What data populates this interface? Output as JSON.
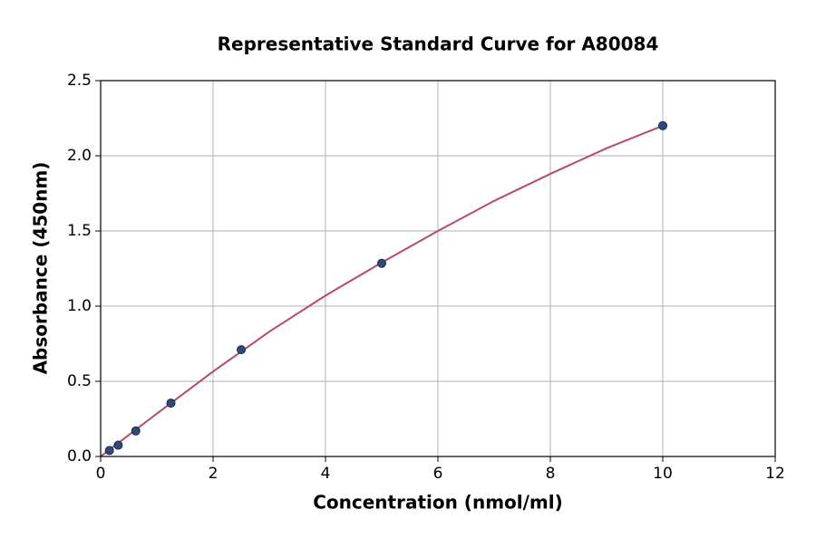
{
  "chart_data": {
    "type": "scatter",
    "title": "Representative Standard Curve for A80084",
    "x_label": "Concentration (nmol/ml)",
    "y_label": "Absorbance (450nm)",
    "xlim": [
      0,
      12
    ],
    "ylim": [
      0,
      2.5
    ],
    "xticks": [
      0,
      2,
      4,
      6,
      8,
      10,
      12
    ],
    "yticks": [
      {
        "value": 0,
        "label": "0.0"
      },
      0.5,
      {
        "value": 1,
        "label": "1.0"
      },
      1.5,
      {
        "value": 2,
        "label": "2.0"
      },
      2.5
    ],
    "grid": true,
    "series": [
      {
        "style": "points",
        "color": "#2e4a7a",
        "x": [
          0.156,
          0.3125,
          0.625,
          1.25,
          2.5,
          5,
          10
        ],
        "values": [
          0.04,
          0.075,
          0.17,
          0.355,
          0.71,
          1.285,
          2.2
        ]
      },
      {
        "style": "line",
        "color": "#b84a6a",
        "x": [
          0,
          1,
          2,
          3,
          4,
          5,
          6,
          7,
          8,
          9,
          10
        ],
        "values": [
          0,
          0.285,
          0.565,
          0.83,
          1.07,
          1.29,
          1.5,
          1.7,
          1.88,
          2.05,
          2.2
        ]
      }
    ]
  }
}
